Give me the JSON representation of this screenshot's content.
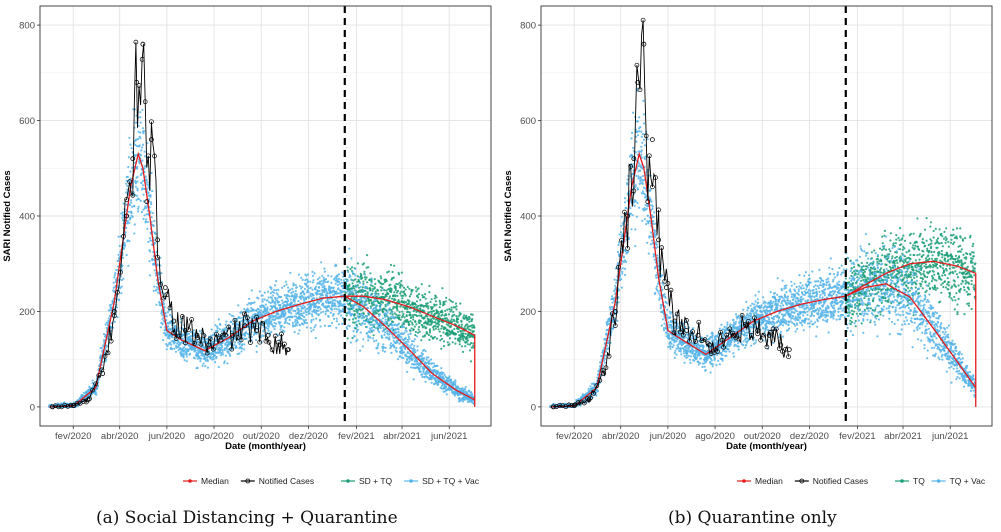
{
  "chart_data": [
    {
      "type": "scatter",
      "caption": "(a) Social Distancing + Quarantine",
      "xlabel": "Date (month/year)",
      "ylabel": "SARI Notified Cases",
      "ylim": [
        -40,
        840
      ],
      "y_ticks": [
        0,
        200,
        400,
        600,
        800
      ],
      "x_ticks": [
        "fev/2020",
        "abr/2020",
        "jun/2020",
        "ago/2020",
        "out/2020",
        "dez/2020",
        "fev/2021",
        "abr/2021",
        "jun/2021"
      ],
      "x_tick_dates": [
        "2020-02-01",
        "2020-04-01",
        "2020-06-01",
        "2020-08-01",
        "2020-10-01",
        "2020-12-01",
        "2021-02-01",
        "2021-04-01",
        "2021-06-01"
      ],
      "xlim": [
        "2019-12-20",
        "2021-07-25"
      ],
      "grid": true,
      "legend_position": "bottom-right",
      "vline_date": "2021-01-17",
      "series": [
        {
          "name": "Median",
          "color": "#e41a1c",
          "x": [
            "2020-01-01",
            "2020-02-01",
            "2020-03-01",
            "2020-03-25",
            "2020-04-15",
            "2020-04-25",
            "2020-05-01",
            "2020-05-10",
            "2020-05-20",
            "2020-06-01",
            "2020-06-20",
            "2020-07-20",
            "2020-08-20",
            "2020-09-20",
            "2020-10-20",
            "2020-11-20",
            "2020-12-20",
            "2021-01-17",
            "2021-02-10",
            "2021-03-10",
            "2021-04-10",
            "2021-05-10",
            "2021-06-10",
            "2021-07-04"
          ],
          "y": [
            0,
            2,
            40,
            220,
            460,
            530,
            500,
            400,
            270,
            160,
            140,
            118,
            145,
            180,
            200,
            215,
            228,
            232,
            225,
            210,
            190,
            165,
            145,
            130
          ]
        },
        {
          "name": "Notified Cases",
          "color": "#000000",
          "x": [
            "2020-01-05",
            "2020-02-01",
            "2020-02-20",
            "2020-03-10",
            "2020-03-25",
            "2020-04-10",
            "2020-04-18",
            "2020-04-23",
            "2020-05-01",
            "2020-05-06",
            "2020-05-12",
            "2020-05-20",
            "2020-05-30",
            "2020-06-10",
            "2020-06-25",
            "2020-07-10",
            "2020-07-25",
            "2020-08-10",
            "2020-08-25",
            "2020-09-10",
            "2020-09-25",
            "2020-10-10",
            "2020-10-25",
            "2020-11-05"
          ],
          "y": [
            0,
            3,
            15,
            70,
            200,
            400,
            520,
            680,
            760,
            430,
            560,
            350,
            250,
            180,
            160,
            150,
            130,
            140,
            150,
            170,
            160,
            150,
            130,
            120
          ]
        },
        {
          "name": "SD + TQ",
          "color": "#1a9e77",
          "x": [
            "2021-01-17",
            "2021-02-10",
            "2021-03-10",
            "2021-04-10",
            "2021-05-10",
            "2021-06-10",
            "2021-07-04"
          ],
          "y": [
            232,
            232,
            225,
            210,
            190,
            170,
            150
          ]
        },
        {
          "name": "SD + TQ + Vac",
          "color": "#56b4e9",
          "x": [
            "2021-01-17",
            "2021-02-10",
            "2021-03-10",
            "2021-04-10",
            "2021-05-10",
            "2021-06-10",
            "2021-07-04"
          ],
          "y": [
            232,
            210,
            170,
            120,
            70,
            35,
            15
          ]
        }
      ]
    },
    {
      "type": "scatter",
      "caption": "(b) Quarantine only",
      "xlabel": "Date (month/year)",
      "ylabel": "SARI Notified Cases",
      "ylim": [
        -40,
        840
      ],
      "y_ticks": [
        0,
        200,
        400,
        600,
        800
      ],
      "x_ticks": [
        "fev/2020",
        "abr/2020",
        "jun/2020",
        "ago/2020",
        "out/2020",
        "dez/2020",
        "fev/2021",
        "abr/2021",
        "jun/2021"
      ],
      "x_tick_dates": [
        "2020-02-01",
        "2020-04-01",
        "2020-06-01",
        "2020-08-01",
        "2020-10-01",
        "2020-12-01",
        "2021-02-01",
        "2021-04-01",
        "2021-06-01"
      ],
      "xlim": [
        "2019-12-20",
        "2021-07-25"
      ],
      "grid": true,
      "legend_position": "bottom-right",
      "vline_date": "2021-01-17",
      "series": [
        {
          "name": "Median",
          "color": "#e41a1c",
          "x": [
            "2020-01-01",
            "2020-02-01",
            "2020-03-01",
            "2020-03-25",
            "2020-04-15",
            "2020-04-25",
            "2020-05-01",
            "2020-05-10",
            "2020-05-20",
            "2020-06-01",
            "2020-06-20",
            "2020-07-20",
            "2020-08-20",
            "2020-09-20",
            "2020-10-20",
            "2020-11-20",
            "2020-12-20",
            "2021-01-17",
            "2021-02-10",
            "2021-03-10",
            "2021-04-10",
            "2021-05-10",
            "2021-06-10",
            "2021-07-04"
          ],
          "y": [
            0,
            2,
            40,
            220,
            460,
            530,
            500,
            400,
            270,
            160,
            140,
            110,
            145,
            180,
            200,
            215,
            225,
            232,
            255,
            280,
            300,
            305,
            295,
            280
          ]
        },
        {
          "name": "Notified Cases",
          "color": "#000000",
          "x": [
            "2020-01-05",
            "2020-02-01",
            "2020-02-20",
            "2020-03-10",
            "2020-03-25",
            "2020-04-10",
            "2020-04-18",
            "2020-04-23",
            "2020-05-01",
            "2020-05-06",
            "2020-05-12",
            "2020-05-20",
            "2020-05-30",
            "2020-06-10",
            "2020-06-25",
            "2020-07-10",
            "2020-07-25",
            "2020-08-10",
            "2020-08-25",
            "2020-09-10",
            "2020-09-25",
            "2020-10-10",
            "2020-10-25",
            "2020-11-05"
          ],
          "y": [
            0,
            3,
            15,
            70,
            200,
            400,
            520,
            680,
            760,
            430,
            560,
            350,
            250,
            180,
            160,
            150,
            130,
            140,
            150,
            170,
            160,
            150,
            130,
            120
          ]
        },
        {
          "name": "TQ",
          "color": "#1a9e77",
          "x": [
            "2021-01-17",
            "2021-02-10",
            "2021-03-10",
            "2021-04-10",
            "2021-05-10",
            "2021-06-10",
            "2021-07-04"
          ],
          "y": [
            232,
            255,
            280,
            300,
            305,
            295,
            280
          ]
        },
        {
          "name": "TQ + Vac",
          "color": "#56b4e9",
          "x": [
            "2021-01-17",
            "2021-02-10",
            "2021-03-10",
            "2021-04-10",
            "2021-05-10",
            "2021-06-10",
            "2021-07-04"
          ],
          "y": [
            232,
            250,
            258,
            230,
            165,
            95,
            40
          ]
        }
      ]
    }
  ]
}
